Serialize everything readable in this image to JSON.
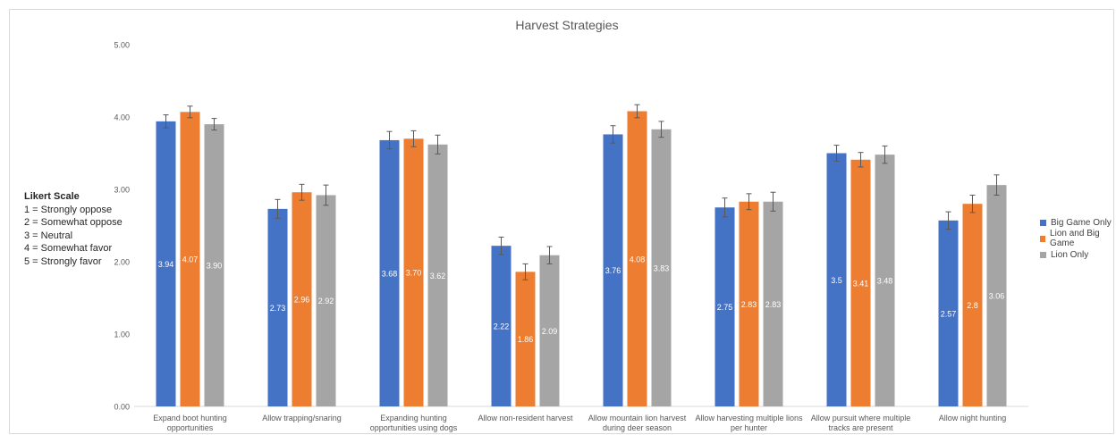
{
  "chart_data": {
    "type": "bar",
    "title": "Harvest Strategies",
    "ylim": [
      0,
      5
    ],
    "yticks": [
      "0.00",
      "1.00",
      "2.00",
      "3.00",
      "4.00",
      "5.00"
    ],
    "categories": [
      [
        "Expand boot hunting",
        "opportunities"
      ],
      [
        "Allow trapping/snaring"
      ],
      [
        "Expanding hunting",
        "opportunities using dogs"
      ],
      [
        "Allow non-resident harvest"
      ],
      [
        "Allow mountain lion harvest",
        "during deer season"
      ],
      [
        "Allow harvesting multiple lions",
        "per hunter"
      ],
      [
        "Allow pursuit where multiple",
        "tracks are present"
      ],
      [
        "Allow night hunting"
      ]
    ],
    "series": [
      {
        "name": "Big Game Only",
        "color": "#4472c4",
        "values": [
          3.94,
          2.73,
          3.68,
          2.22,
          3.76,
          2.75,
          3.5,
          2.57
        ],
        "labels": [
          "3.94",
          "2.73",
          "3.68",
          "2.22",
          "3.76",
          "2.75",
          "3.5",
          "2.57"
        ],
        "error": [
          0.09,
          0.13,
          0.12,
          0.12,
          0.12,
          0.13,
          0.11,
          0.12
        ]
      },
      {
        "name": "Lion and Big Game",
        "color": "#ed7d31",
        "values": [
          4.07,
          2.96,
          3.7,
          1.86,
          4.08,
          2.83,
          3.41,
          2.8
        ],
        "labels": [
          "4.07",
          "2.96",
          "3.70",
          "1.86",
          "4.08",
          "2.83",
          "3.41",
          "2.8"
        ],
        "error": [
          0.08,
          0.11,
          0.11,
          0.11,
          0.09,
          0.11,
          0.1,
          0.12
        ]
      },
      {
        "name": "Lion Only",
        "color": "#a5a5a5",
        "values": [
          3.9,
          2.92,
          3.62,
          2.09,
          3.83,
          2.83,
          3.48,
          3.06
        ],
        "labels": [
          "3.90",
          "2.92",
          "3.62",
          "2.09",
          "3.83",
          "2.83",
          "3.48",
          "3.06"
        ],
        "error": [
          0.08,
          0.14,
          0.13,
          0.12,
          0.11,
          0.13,
          0.12,
          0.14
        ]
      }
    ],
    "legend_position": "right",
    "grid": false
  },
  "side_note": {
    "heading": "Likert Scale",
    "lines": [
      "1 = Strongly oppose",
      "2 = Somewhat oppose",
      "3 = Neutral",
      "4 = Somewhat favor",
      "5 = Strongly favor"
    ]
  }
}
